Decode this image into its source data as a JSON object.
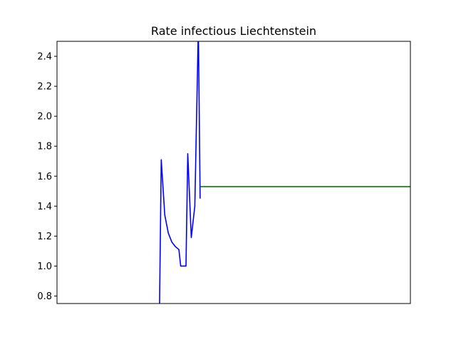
{
  "chart_data": {
    "type": "line",
    "title": "Rate infectious Liechtenstein",
    "xlabel": "",
    "ylabel": "",
    "xlim": [
      0,
      100
    ],
    "ylim": [
      0.75,
      2.5
    ],
    "grid": false,
    "x_ticks_visible": false,
    "y_ticks": [
      0.8,
      1.0,
      1.2,
      1.4,
      1.6,
      1.8,
      2.0,
      2.2,
      2.4
    ],
    "series": [
      {
        "color": "#0000ff",
        "x": [
          29.0,
          29.5,
          30.5,
          31.5,
          32.5,
          33.5,
          34.5,
          35.0,
          36.5,
          37.0,
          38.0,
          39.0,
          40.0,
          40.5
        ],
        "y": [
          0.7,
          1.71,
          1.34,
          1.22,
          1.16,
          1.13,
          1.11,
          1.0,
          1.0,
          1.75,
          1.19,
          1.4,
          2.6,
          1.45
        ]
      },
      {
        "color": "#008000",
        "x": [
          40.5,
          100.0
        ],
        "y": [
          1.53,
          1.53
        ]
      }
    ]
  }
}
